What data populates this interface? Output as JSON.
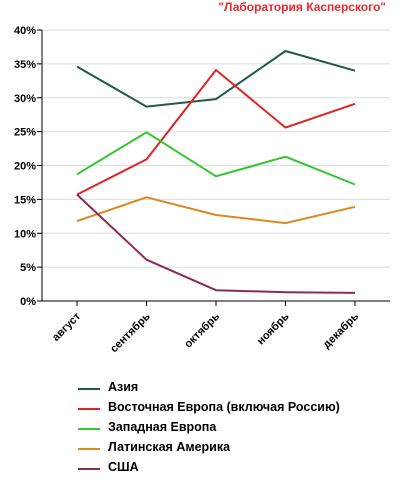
{
  "watermark": "\"Лаборатория Касперского\"",
  "chart_data": {
    "type": "line",
    "categories": [
      "август",
      "сентябрь",
      "октябрь",
      "ноябрь",
      "декабрь"
    ],
    "ylim": [
      0,
      40
    ],
    "yticks": [
      "0%",
      "5%",
      "10%",
      "15%",
      "20%",
      "25%",
      "30%",
      "35%",
      "40%"
    ],
    "grid": true,
    "legend_position": "bottom",
    "series": [
      {
        "name": "Азия",
        "color": "#1f5a4a",
        "values": [
          34.6,
          28.7,
          29.8,
          36.9,
          34.0
        ]
      },
      {
        "name": "Восточная Европа (включая Россию)",
        "color": "#e12323",
        "values": [
          15.7,
          20.9,
          34.1,
          25.6,
          29.1
        ]
      },
      {
        "name": "Западная Европа",
        "color": "#2ec82e",
        "values": [
          18.7,
          24.9,
          18.4,
          21.3,
          17.2
        ]
      },
      {
        "name": "Латинская Америка",
        "color": "#d98a1e",
        "values": [
          11.8,
          15.3,
          12.7,
          11.5,
          13.9
        ]
      },
      {
        "name": "США",
        "color": "#8b2a5c",
        "values": [
          15.7,
          6.1,
          1.6,
          1.3,
          1.2
        ]
      }
    ]
  }
}
